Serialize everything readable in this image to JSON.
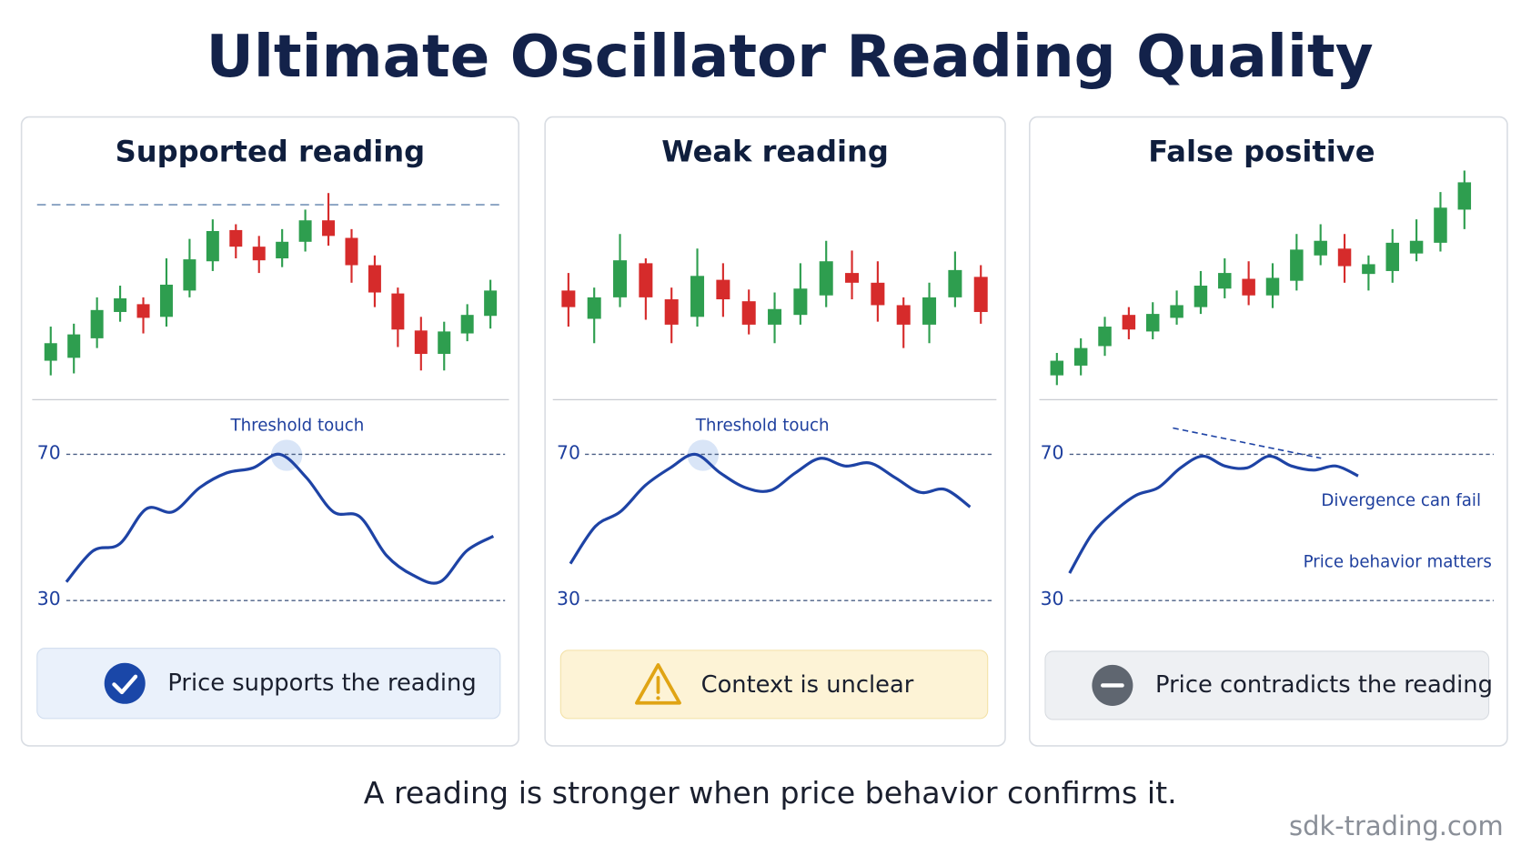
{
  "title": "Ultimate Oscillator Reading Quality",
  "price_lim": [
    0,
    240
  ],
  "oscillator_axis": {
    "lim": [
      30,
      70
    ],
    "ticks": [
      30,
      70
    ]
  },
  "up_color": "#2e9e4f",
  "down_color": "#d62b2b",
  "line_color": "#1e43a5",
  "panels": [
    {
      "title": "Supported reading",
      "notes": [
        "Threshold touch"
      ],
      "status": "Price supports the reading",
      "candles": [
        [
          35,
          70,
          20,
          53
        ],
        [
          38,
          73,
          22,
          62
        ],
        [
          58,
          100,
          48,
          87
        ],
        [
          85,
          112,
          75,
          99
        ],
        [
          93,
          100,
          63,
          79
        ],
        [
          80,
          140,
          70,
          113
        ],
        [
          107,
          160,
          100,
          139
        ],
        [
          137,
          180,
          127,
          168
        ],
        [
          169,
          175,
          140,
          152
        ],
        [
          152,
          163,
          125,
          138
        ],
        [
          140,
          170,
          131,
          157
        ],
        [
          157,
          190,
          147,
          179
        ],
        [
          179,
          207,
          153,
          163
        ],
        [
          161,
          170,
          115,
          133
        ],
        [
          133,
          143,
          90,
          105
        ],
        [
          104,
          110,
          49,
          67
        ],
        [
          66,
          80,
          25,
          42
        ],
        [
          42,
          75,
          25,
          65
        ],
        [
          63,
          93,
          55,
          82
        ],
        [
          81,
          118,
          68,
          107
        ]
      ],
      "oscillator": [
        35.1,
        43.6,
        45.5,
        55.1,
        54.3,
        60.9,
        64.9,
        66.3,
        70,
        63.6,
        54.3,
        52.9,
        42.3,
        36.9,
        35.1,
        43.6,
        47.6
      ]
    },
    {
      "title": "Weak reading",
      "notes": [
        "Threshold touch"
      ],
      "status": "Context is unclear",
      "candles": [
        [
          107,
          125,
          70,
          90
        ],
        [
          78,
          110,
          53,
          100
        ],
        [
          100,
          165,
          90,
          138
        ],
        [
          135,
          140,
          77,
          100
        ],
        [
          98,
          110,
          53,
          72
        ],
        [
          80,
          150,
          70,
          122
        ],
        [
          118,
          135,
          80,
          98
        ],
        [
          96,
          108,
          62,
          72
        ],
        [
          72,
          105,
          53,
          88
        ],
        [
          82,
          135,
          72,
          109
        ],
        [
          102,
          158,
          90,
          137
        ],
        [
          125,
          148,
          98,
          115
        ],
        [
          115,
          137,
          75,
          92
        ],
        [
          92,
          100,
          48,
          72
        ],
        [
          72,
          115,
          53,
          100
        ],
        [
          100,
          147,
          90,
          128
        ],
        [
          121,
          133,
          73,
          85
        ]
      ],
      "oscillator": [
        40.1,
        50.3,
        54.3,
        61.5,
        66.3,
        70,
        64.9,
        60.9,
        60.1,
        64.9,
        68.9,
        66.8,
        67.6,
        63.6,
        59.6,
        60.4,
        55.6
      ]
    },
    {
      "title": "False positive",
      "notes": [
        "Divergence can fail",
        "Price behavior matters"
      ],
      "status": "Price contradicts the reading",
      "candles": [
        [
          20,
          43,
          10,
          35
        ],
        [
          30,
          58,
          20,
          48
        ],
        [
          50,
          80,
          40,
          70
        ],
        [
          82,
          90,
          57,
          67
        ],
        [
          65,
          95,
          57,
          83
        ],
        [
          79,
          107,
          72,
          92
        ],
        [
          90,
          127,
          83,
          112
        ],
        [
          109,
          140,
          99,
          125
        ],
        [
          119,
          137,
          92,
          102
        ],
        [
          102,
          135,
          89,
          120
        ],
        [
          117,
          165,
          107,
          149
        ],
        [
          143,
          175,
          133,
          158
        ],
        [
          150,
          165,
          115,
          132
        ],
        [
          124,
          143,
          107,
          134
        ],
        [
          127,
          170,
          115,
          156
        ],
        [
          145,
          180,
          137,
          158
        ],
        [
          156,
          208,
          147,
          192
        ],
        [
          190,
          230,
          170,
          218
        ]
      ],
      "oscillator": [
        37.5,
        48.1,
        54.3,
        58.8,
        60.9,
        66.3,
        69.5,
        66.8,
        66.3,
        69.5,
        66.8,
        65.7,
        66.8,
        64.1
      ]
    }
  ],
  "footer": "A reading is stronger when price behavior confirms it.",
  "watermark": "sdk-trading.com"
}
